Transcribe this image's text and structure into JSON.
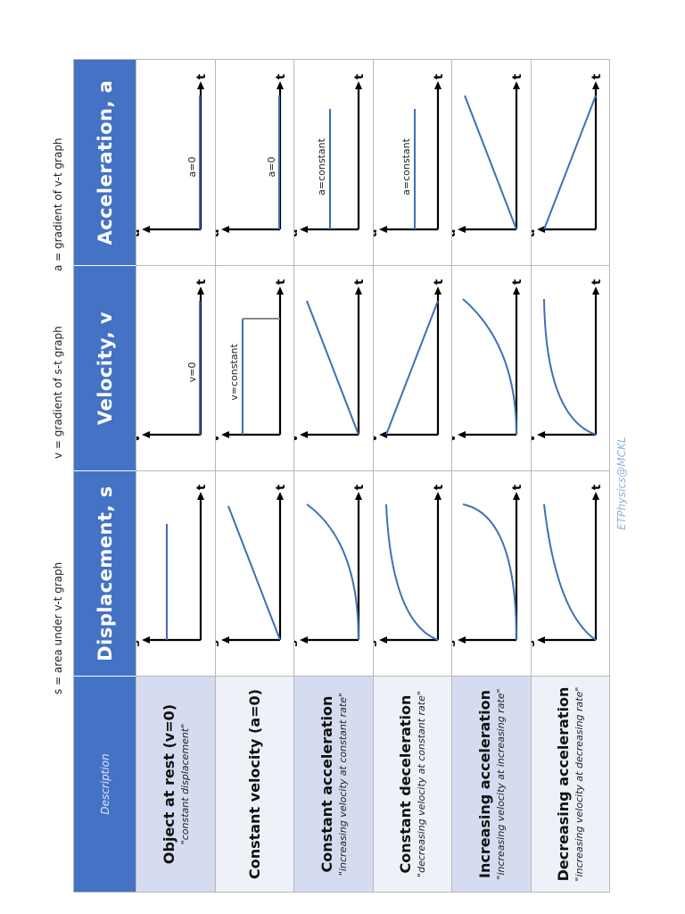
{
  "header_notes": {
    "s_note": "s = area under v-t graph",
    "v_note": "v = gradient of s-t graph",
    "a_note": "a = gradient of v-t graph"
  },
  "columns": {
    "description": "Description",
    "displacement": "Displacement, s",
    "velocity": "Velocity, v",
    "acceleration": "Acceleration, a"
  },
  "axis_labels": {
    "s": "s",
    "v": "v",
    "a": "a",
    "t": "t"
  },
  "rows": [
    {
      "title": "Object at rest (v=0)",
      "subtitle": "\"constant displacement\"",
      "v_label": "v=0",
      "a_label": "a=0",
      "s_shape": "const",
      "v_shape": "zero",
      "a_shape": "zero"
    },
    {
      "title": "Constant velocity (a=0)",
      "subtitle": "",
      "v_label": "v=constant",
      "a_label": "a=0",
      "s_shape": "linear",
      "v_shape": "const",
      "a_shape": "zero"
    },
    {
      "title": "Constant acceleration",
      "subtitle": "\"increasing velocity at constant rate\"",
      "v_label": "",
      "a_label": "a=constant",
      "s_shape": "concave-up",
      "v_shape": "linear-up",
      "a_shape": "const"
    },
    {
      "title": "Constant deceleration",
      "subtitle": "\"decreasing velocity at constant rate\"",
      "v_label": "",
      "a_label": "a=constant",
      "s_shape": "concave-down",
      "v_shape": "linear-down",
      "a_shape": "const-neg"
    },
    {
      "title": "Increasing acceleration",
      "subtitle": "\"increasing velocity at increasing rate\"",
      "v_label": "",
      "a_label": "",
      "s_shape": "steep-up",
      "v_shape": "curve-up",
      "a_shape": "linear-up"
    },
    {
      "title": "Decreasing acceleration",
      "subtitle": "\"increasing velocity at decreasing rate\"",
      "v_label": "",
      "a_label": "",
      "s_shape": "s-curve",
      "v_shape": "curve-flatten",
      "a_shape": "linear-down"
    }
  ],
  "credit": "ETPhysics@MCKL",
  "colors": {
    "header": "#4472c4",
    "row_shade": "#d6dcf0",
    "curve": "#3f6fb5",
    "axis": "#000000"
  }
}
